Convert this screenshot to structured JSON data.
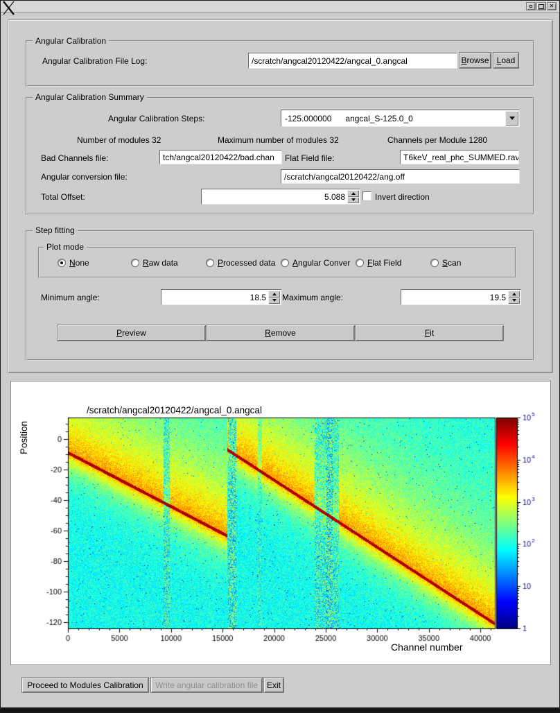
{
  "window": {
    "controls": [
      "iconify",
      "maximize",
      "close"
    ]
  },
  "angular_calibration": {
    "group_title": "Angular Calibration",
    "file_log_label": "Angular Calibration File Log:",
    "file_log_value": "/scratch/angcal20120422/angcal_0.angcal",
    "browse_button": "Browse",
    "load_button": "Load"
  },
  "summary": {
    "group_title": "Angular Calibration Summary",
    "steps_label": "Angular Calibration Steps:",
    "steps_value": "-125.000000      angcal_S-125.0_0",
    "num_modules_text": "Number of modules 32",
    "max_modules_text": "Maximum number of modules 32",
    "channels_per_module_text": "Channels per Module 1280",
    "bad_channels_label": "Bad Channels file:",
    "bad_channels_value": "tch/angcal20120422/bad.chan",
    "flat_field_label": "Flat Field file:",
    "flat_field_value": "T6keV_real_phc_SUMMED.rav",
    "ang_conversion_label": "Angular conversion file:",
    "ang_conversion_value": "/scratch/angcal20120422/ang.off",
    "total_offset_label": "Total Offset:",
    "total_offset_value": "5.088",
    "invert_label": "Invert direction",
    "invert_checked": false
  },
  "step_fitting": {
    "group_title": "Step fitting",
    "plot_mode_title": "Plot mode",
    "plot_modes": [
      {
        "label": "None",
        "selected": true
      },
      {
        "label": "Raw data",
        "selected": false
      },
      {
        "label": "Processed data",
        "selected": false
      },
      {
        "label": "Angular Conver",
        "selected": false
      },
      {
        "label": "Flat Field",
        "selected": false
      },
      {
        "label": "Scan",
        "selected": false
      }
    ],
    "min_angle_label": "Minimum angle:",
    "min_angle_value": "18.5",
    "max_angle_label": "Maximum angle:",
    "max_angle_value": "19.5",
    "preview_button": "Preview",
    "remove_button": "Remove",
    "fit_button": "Fit"
  },
  "footer": {
    "proceed_button": "Proceed to Modules Calibration",
    "write_button": "Write angular calibration file",
    "write_disabled": true,
    "exit_button": "Exit"
  },
  "chart_data": {
    "type": "heatmap",
    "title": "/scratch/angcal20120422/angcal_0.angcal",
    "xlabel": "Channel number",
    "ylabel": "Position",
    "xlim": [
      0,
      41400
    ],
    "ylim": [
      -124,
      14
    ],
    "xticks": [
      0,
      5000,
      10000,
      15000,
      20000,
      25000,
      30000,
      35000,
      40000
    ],
    "yticks": [
      0,
      -20,
      -40,
      -60,
      -80,
      -100,
      -120
    ],
    "x_minor_step": 1000,
    "y_minor_step": 5,
    "colormap": "jet",
    "color_scale": "log",
    "colorbar_ticks": [
      1,
      10,
      100,
      1000,
      10000,
      100000
    ],
    "colorbar_labels": [
      "1",
      "10",
      "10^2",
      "10^3",
      "10^4",
      "10^5"
    ],
    "log_range": [
      0,
      5
    ],
    "background_log": 1.95,
    "band_amp": 1.7,
    "band_width_above": 45,
    "band_width_below": 10,
    "ridge_log": 4.6,
    "ridge_segments": [
      {
        "x0": 0,
        "y0": -9,
        "x1": 15450,
        "y1": -63.5
      },
      {
        "x0": 15450,
        "y0": -7,
        "x1": 41400,
        "y1": -121
      }
    ],
    "noise_stripes": [
      {
        "x0": 9300,
        "x1": 9900,
        "mix": 0.75
      },
      {
        "x0": 15500,
        "x1": 16350,
        "mix": 0.85
      },
      {
        "x0": 18400,
        "x1": 18800,
        "mix": 0.5
      },
      {
        "x0": 23900,
        "x1": 26300,
        "mix": 0.7
      },
      {
        "x0": 25100,
        "x1": 25700,
        "mix": 0.9
      }
    ]
  }
}
